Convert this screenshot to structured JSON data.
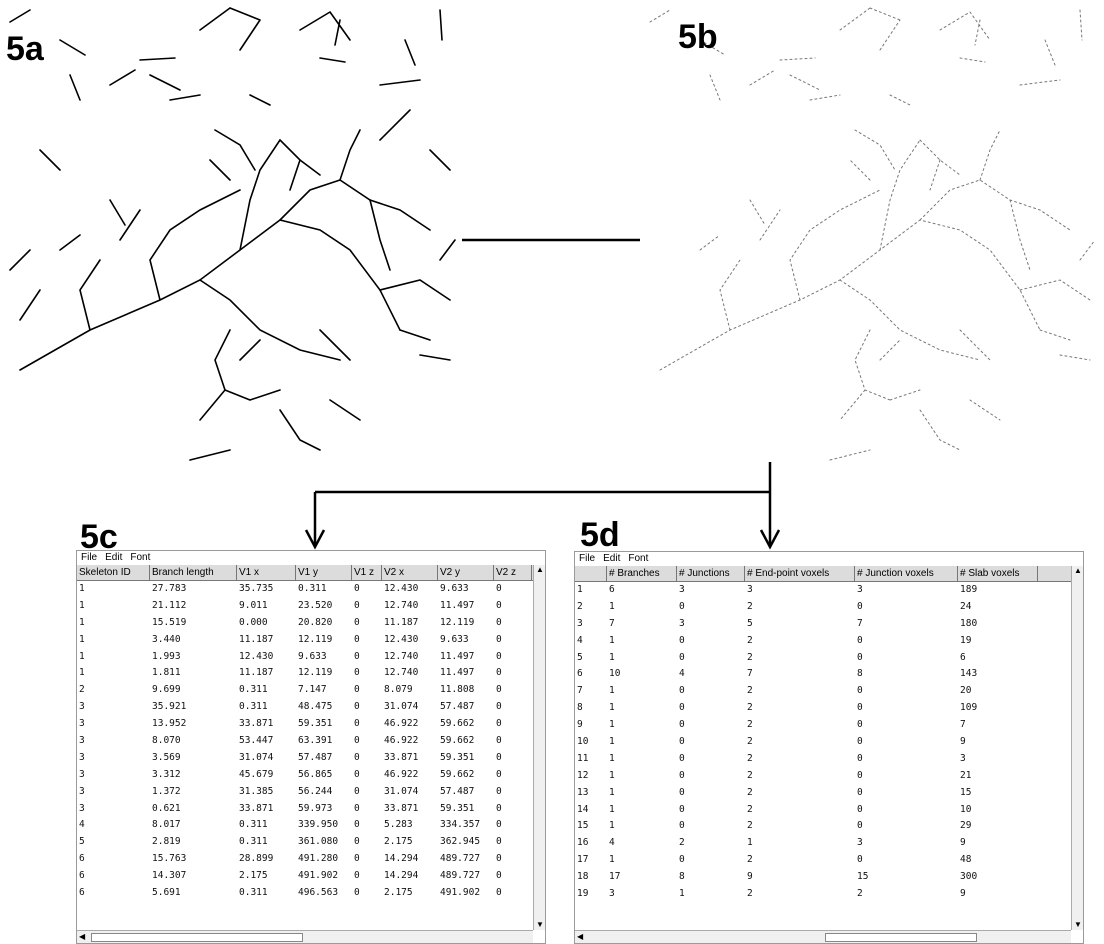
{
  "labels": {
    "a": "5a",
    "b": "5b",
    "c": "5c",
    "d": "5d"
  },
  "colors": {
    "stroke": "#000000",
    "skeleton_b": "#666666",
    "header_bg": "#dcdcdc"
  },
  "window_c": {
    "menu": [
      "File",
      "Edit",
      "Font"
    ],
    "columns": [
      "Skeleton ID",
      "Branch length",
      "V1 x",
      "V1 y",
      "V1 z",
      "V2 x",
      "V2 y",
      "V2 z"
    ],
    "rows": [
      [
        "1",
        "27.783",
        "35.735",
        "0.311",
        "0",
        "12.430",
        "9.633",
        "0"
      ],
      [
        "1",
        "21.112",
        "9.011",
        "23.520",
        "0",
        "12.740",
        "11.497",
        "0"
      ],
      [
        "1",
        "15.519",
        "0.000",
        "20.820",
        "0",
        "11.187",
        "12.119",
        "0"
      ],
      [
        "1",
        "3.440",
        "11.187",
        "12.119",
        "0",
        "12.430",
        "9.633",
        "0"
      ],
      [
        "1",
        "1.993",
        "12.430",
        "9.633",
        "0",
        "12.740",
        "11.497",
        "0"
      ],
      [
        "1",
        "1.811",
        "11.187",
        "12.119",
        "0",
        "12.740",
        "11.497",
        "0"
      ],
      [
        "2",
        "9.699",
        "0.311",
        "7.147",
        "0",
        "8.079",
        "11.808",
        "0"
      ],
      [
        "3",
        "35.921",
        "0.311",
        "48.475",
        "0",
        "31.074",
        "57.487",
        "0"
      ],
      [
        "3",
        "13.952",
        "33.871",
        "59.351",
        "0",
        "46.922",
        "59.662",
        "0"
      ],
      [
        "3",
        "8.070",
        "53.447",
        "63.391",
        "0",
        "46.922",
        "59.662",
        "0"
      ],
      [
        "3",
        "3.569",
        "31.074",
        "57.487",
        "0",
        "33.871",
        "59.351",
        "0"
      ],
      [
        "3",
        "3.312",
        "45.679",
        "56.865",
        "0",
        "46.922",
        "59.662",
        "0"
      ],
      [
        "3",
        "1.372",
        "31.385",
        "56.244",
        "0",
        "31.074",
        "57.487",
        "0"
      ],
      [
        "3",
        "0.621",
        "33.871",
        "59.973",
        "0",
        "33.871",
        "59.351",
        "0"
      ],
      [
        "4",
        "8.017",
        "0.311",
        "339.950",
        "0",
        "5.283",
        "334.357",
        "0"
      ],
      [
        "5",
        "2.819",
        "0.311",
        "361.080",
        "0",
        "2.175",
        "362.945",
        "0"
      ],
      [
        "6",
        "15.763",
        "28.899",
        "491.280",
        "0",
        "14.294",
        "489.727",
        "0"
      ],
      [
        "6",
        "14.307",
        "2.175",
        "491.902",
        "0",
        "14.294",
        "489.727",
        "0"
      ],
      [
        "6",
        "5.691",
        "0.311",
        "496.563",
        "0",
        "2.175",
        "491.902",
        "0"
      ]
    ]
  },
  "window_d": {
    "menu": [
      "File",
      "Edit",
      "Font"
    ],
    "columns": [
      "",
      "# Branches",
      "# Junctions",
      "# End-point voxels",
      "# Junction voxels",
      "# Slab voxels"
    ],
    "rows": [
      [
        "1",
        "6",
        "3",
        "3",
        "3",
        "189"
      ],
      [
        "2",
        "1",
        "0",
        "2",
        "0",
        "24"
      ],
      [
        "3",
        "7",
        "3",
        "5",
        "7",
        "180"
      ],
      [
        "4",
        "1",
        "0",
        "2",
        "0",
        "19"
      ],
      [
        "5",
        "1",
        "0",
        "2",
        "0",
        "6"
      ],
      [
        "6",
        "10",
        "4",
        "7",
        "8",
        "143"
      ],
      [
        "7",
        "1",
        "0",
        "2",
        "0",
        "20"
      ],
      [
        "8",
        "1",
        "0",
        "2",
        "0",
        "109"
      ],
      [
        "9",
        "1",
        "0",
        "2",
        "0",
        "7"
      ],
      [
        "10",
        "1",
        "0",
        "2",
        "0",
        "9"
      ],
      [
        "11",
        "1",
        "0",
        "2",
        "0",
        "3"
      ],
      [
        "12",
        "1",
        "0",
        "2",
        "0",
        "21"
      ],
      [
        "13",
        "1",
        "0",
        "2",
        "0",
        "15"
      ],
      [
        "14",
        "1",
        "0",
        "2",
        "0",
        "10"
      ],
      [
        "15",
        "1",
        "0",
        "2",
        "0",
        "29"
      ],
      [
        "16",
        "4",
        "2",
        "1",
        "3",
        "9"
      ],
      [
        "17",
        "1",
        "0",
        "2",
        "0",
        "48"
      ],
      [
        "18",
        "17",
        "8",
        "9",
        "15",
        "300"
      ],
      [
        "19",
        "3",
        "1",
        "2",
        "2",
        "9"
      ]
    ]
  }
}
